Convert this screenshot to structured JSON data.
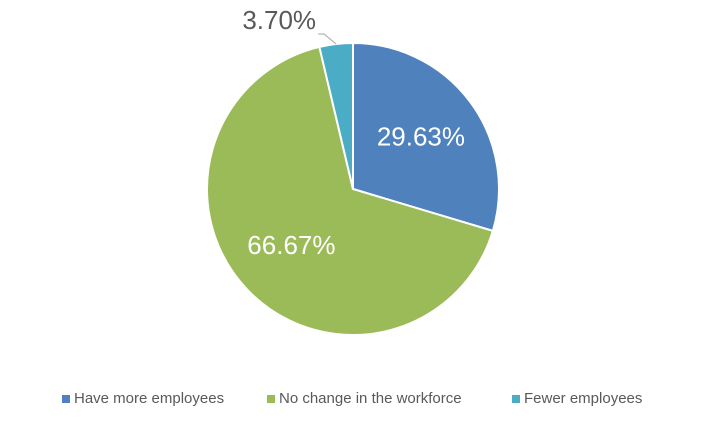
{
  "chart_data": {
    "type": "pie",
    "categories": [
      "Have more employees",
      "No change in the workforce",
      "Fewer employees"
    ],
    "values": [
      29.63,
      66.67,
      3.7
    ],
    "value_labels": [
      "29.63%",
      "66.67%",
      "3.70%"
    ],
    "colors": [
      "#4f81bd",
      "#9bbb59",
      "#4bacc6"
    ],
    "legend": "bottom"
  }
}
